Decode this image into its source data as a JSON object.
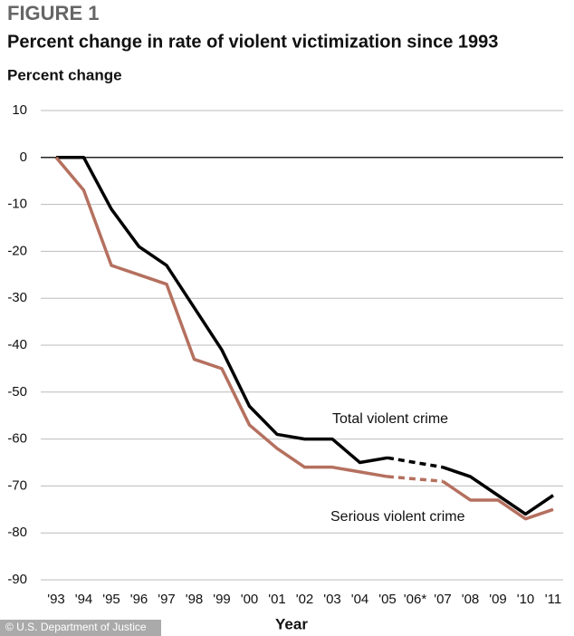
{
  "chart_data": {
    "type": "line",
    "title": "FIGURE 1",
    "subtitle": "Percent change in rate of violent victimization since 1993",
    "y_label": "Percent change",
    "x_label": "Year",
    "source": "© U.S. Department of Justice",
    "categories": [
      "'93",
      "'94",
      "'95",
      "'96",
      "'97",
      "'98",
      "'99",
      "'00",
      "'01",
      "'02",
      "'03",
      "'04",
      "'05",
      "'06*",
      "'07",
      "'08",
      "'09",
      "'10",
      "'11"
    ],
    "series": [
      {
        "name": "Total violent crime",
        "color": "#000000",
        "values": [
          0,
          0,
          -11,
          -19,
          -23,
          -32,
          -41,
          -53,
          -59,
          -60,
          -60,
          -65,
          -64,
          null,
          -66,
          -68,
          -72,
          -76,
          -72
        ]
      },
      {
        "name": "Serious violent crime",
        "color": "#b5705f",
        "values": [
          0,
          -7,
          -23,
          -25,
          -27,
          -43,
          -45,
          -57,
          -62,
          -66,
          -66,
          -67,
          -68,
          null,
          -69,
          -73,
          -73,
          -77,
          -75
        ]
      }
    ],
    "ylim": [
      10,
      -90
    ],
    "yticks": [
      10,
      0,
      -10,
      -20,
      -30,
      -40,
      -50,
      -60,
      -70,
      -80,
      -90
    ],
    "grid": true
  }
}
